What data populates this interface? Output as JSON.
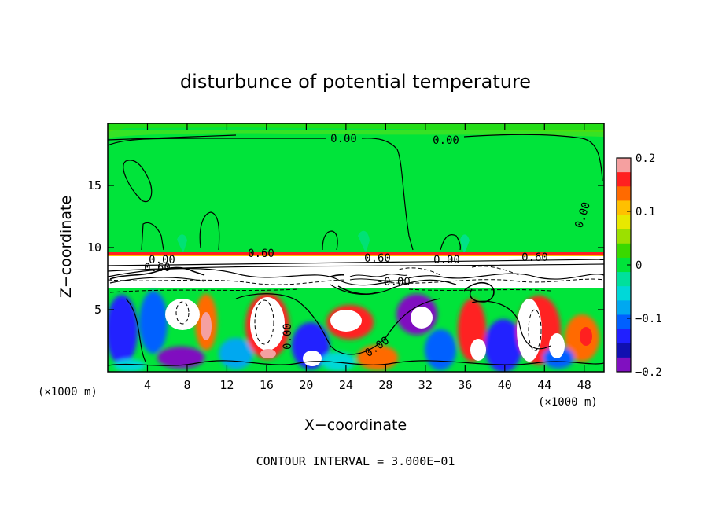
{
  "chart_data": {
    "type": "heatmap",
    "title": "disturbunce of potential temperature",
    "xlabel": "X−coordinate",
    "ylabel": "Z−coordinate",
    "x_unit": "(×1000 m)",
    "z_unit": "(×1000 m)",
    "xlim": [
      0,
      50
    ],
    "ylim": [
      0,
      20
    ],
    "x_ticks": [
      4,
      8,
      12,
      16,
      20,
      24,
      28,
      32,
      36,
      40,
      44,
      48
    ],
    "y_ticks": [
      5,
      10,
      15
    ],
    "colorbar": {
      "range": [
        -0.2,
        0.2
      ],
      "ticks": [
        "0.2",
        "0.1",
        "0",
        "−0.1",
        "−0.2"
      ],
      "colors": [
        "#f5a0a0",
        "#ff2020",
        "#ff6a00",
        "#ffc000",
        "#e8e800",
        "#9ce000",
        "#3ad800",
        "#00e43a",
        "#00e09c",
        "#00d8d8",
        "#00a8f0",
        "#0060ff",
        "#2020ff",
        "#1010b0",
        "#8010c0"
      ]
    },
    "contour_labels": [
      "0.00",
      "0.00",
      "0.00",
      "0.00",
      "0.60",
      "0.60",
      "0.00",
      "0.60",
      "0.00",
      "0.00",
      "0.60",
      "0.00"
    ],
    "contour_interval_text": "CONTOUR INTERVAL = 3.000E−01"
  }
}
